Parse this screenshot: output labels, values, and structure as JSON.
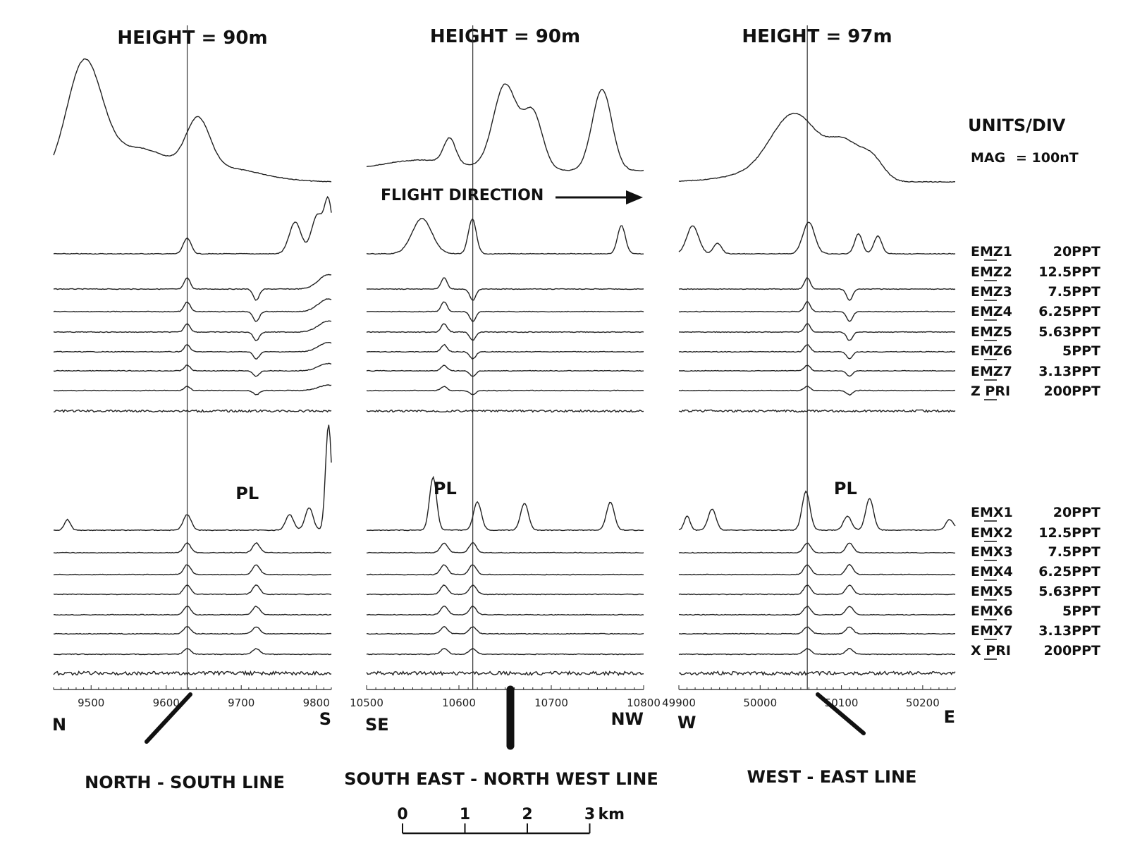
{
  "chart_data": {
    "type": "line",
    "flight_direction_label": "FLIGHT DIRECTION",
    "units_title": "UNITS/DIV",
    "scale_bar": {
      "ticks": [
        "0",
        "1",
        "2",
        "3"
      ],
      "unit": "km"
    },
    "pl_label": "PL",
    "channels": [
      {
        "name": "MAG",
        "scale": "= 100nT"
      },
      {
        "name": "EMZ1",
        "scale": "20PPT"
      },
      {
        "name": "EMZ2",
        "scale": "12.5PPT"
      },
      {
        "name": "EMZ3",
        "scale": "7.5PPT"
      },
      {
        "name": "EMZ4",
        "scale": "6.25PPT"
      },
      {
        "name": "EMZ5",
        "scale": "5.63PPT"
      },
      {
        "name": "EMZ6",
        "scale": "5PPT"
      },
      {
        "name": "EMZ7",
        "scale": "3.13PPT"
      },
      {
        "name": "Z PRI",
        "scale": "200PPT"
      },
      {
        "name": "EMX1",
        "scale": "20PPT"
      },
      {
        "name": "EMX2",
        "scale": "12.5PPT"
      },
      {
        "name": "EMX3",
        "scale": "7.5PPT"
      },
      {
        "name": "EMX4",
        "scale": "6.25PPT"
      },
      {
        "name": "EMX5",
        "scale": "5.63PPT"
      },
      {
        "name": "EMX6",
        "scale": "5PPT"
      },
      {
        "name": "EMX7",
        "scale": "3.13PPT"
      },
      {
        "name": "X PRI",
        "scale": "200PPT"
      }
    ],
    "panels": [
      {
        "height_label": "HEIGHT = 90m",
        "line_label": "NORTH - SOUTH LINE",
        "dir_left": "N",
        "dir_right": "S",
        "x_ticks": [
          9500,
          9600,
          9700,
          9800
        ],
        "xlim": [
          9450,
          9820
        ],
        "marker_x": 9628,
        "anomaly_x": [
          9628,
          9720
        ],
        "pl_x": 9708
      },
      {
        "height_label": "HEIGHT = 90m",
        "line_label": "SOUTH EAST - NORTH WEST LINE",
        "dir_left": "SE",
        "dir_right": "NW",
        "x_ticks": [
          10500,
          10600,
          10700,
          10800
        ],
        "xlim": [
          10500,
          10800
        ],
        "marker_x": 10615,
        "anomaly_x": [
          10584,
          10615
        ],
        "pl_x": 10585
      },
      {
        "height_label": "HEIGHT = 97m",
        "line_label": "WEST - EAST LINE",
        "dir_left": "W",
        "dir_right": "E",
        "x_ticks": [
          49900,
          50000,
          50100,
          50200
        ],
        "xlim": [
          49900,
          50240
        ],
        "marker_x": 50058,
        "anomaly_x": [
          50058,
          50110
        ],
        "pl_x": 50105
      }
    ]
  }
}
